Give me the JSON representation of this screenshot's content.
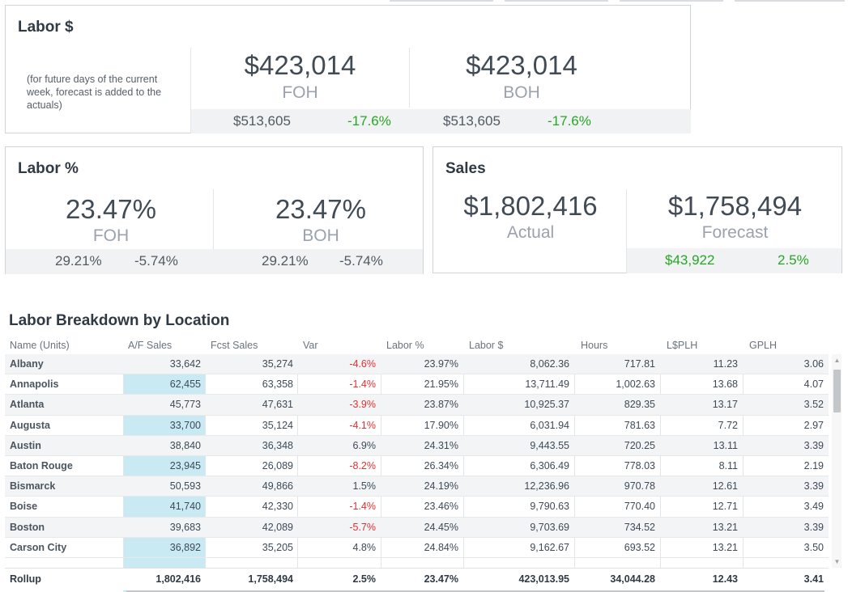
{
  "labor_dollars": {
    "title": "Labor $",
    "note": "(for future days of the current week, forecast is added to the actuals)",
    "foh_value": "$423,014",
    "foh_label": "FOH",
    "boh_value": "$423,014",
    "boh_label": "BOH",
    "foh_compare": "$513,605",
    "foh_var": "-17.6%",
    "boh_compare": "$513,605",
    "boh_var": "-17.6%"
  },
  "labor_percent": {
    "title": "Labor %",
    "foh_value": "23.47%",
    "foh_label": "FOH",
    "boh_value": "23.47%",
    "boh_label": "BOH",
    "foh_compare": "29.21%",
    "foh_var": "-5.74%",
    "boh_compare": "29.21%",
    "boh_var": "-5.74%"
  },
  "sales": {
    "title": "Sales",
    "actual_value": "$1,802,416",
    "actual_label": "Actual",
    "forecast_value": "$1,758,494",
    "forecast_label": "Forecast",
    "diff_value": "$43,922",
    "diff_pct": "2.5%"
  },
  "breakdown": {
    "title": "Labor Breakdown by Location",
    "columns": [
      "Name (Units)",
      "A/F Sales",
      "Fcst Sales",
      "Var",
      "Labor %",
      "Labor $",
      "Hours",
      "L$PLH",
      "GPLH"
    ],
    "rows": [
      [
        "Albany",
        "33,642",
        "35,274",
        "-4.6%",
        "23.97%",
        "8,062.36",
        "717.81",
        "11.23",
        "3.06"
      ],
      [
        "Annapolis",
        "62,455",
        "63,358",
        "-1.4%",
        "21.95%",
        "13,711.49",
        "1,002.63",
        "13.68",
        "4.07"
      ],
      [
        "Atlanta",
        "45,773",
        "47,631",
        "-3.9%",
        "23.87%",
        "10,925.37",
        "829.35",
        "13.17",
        "3.52"
      ],
      [
        "Augusta",
        "33,700",
        "35,124",
        "-4.1%",
        "17.90%",
        "6,031.94",
        "781.63",
        "7.72",
        "2.97"
      ],
      [
        "Austin",
        "38,840",
        "36,348",
        "6.9%",
        "24.31%",
        "9,443.55",
        "720.25",
        "13.11",
        "3.39"
      ],
      [
        "Baton Rouge",
        "23,945",
        "26,089",
        "-8.2%",
        "26.34%",
        "6,306.49",
        "778.03",
        "8.11",
        "2.19"
      ],
      [
        "Bismarck",
        "50,593",
        "49,866",
        "1.5%",
        "24.19%",
        "12,236.96",
        "970.78",
        "12.61",
        "3.39"
      ],
      [
        "Boise",
        "41,740",
        "42,330",
        "-1.4%",
        "23.46%",
        "9,790.63",
        "770.40",
        "12.71",
        "3.49"
      ],
      [
        "Boston",
        "39,683",
        "42,089",
        "-5.7%",
        "24.45%",
        "9,703.69",
        "734.52",
        "13.21",
        "3.39"
      ],
      [
        "Carson City",
        "36,892",
        "35,205",
        "4.8%",
        "24.84%",
        "9,162.67",
        "693.52",
        "13.21",
        "3.50"
      ]
    ],
    "rollup": [
      "Rollup",
      "1,802,416",
      "1,758,494",
      "2.5%",
      "23.47%",
      "423,013.95",
      "34,044.28",
      "12.43",
      "3.41"
    ]
  },
  "colors": {
    "accent_blue_column": "#c9e9f3",
    "negative": "#e03131",
    "positive": "#26a626"
  }
}
